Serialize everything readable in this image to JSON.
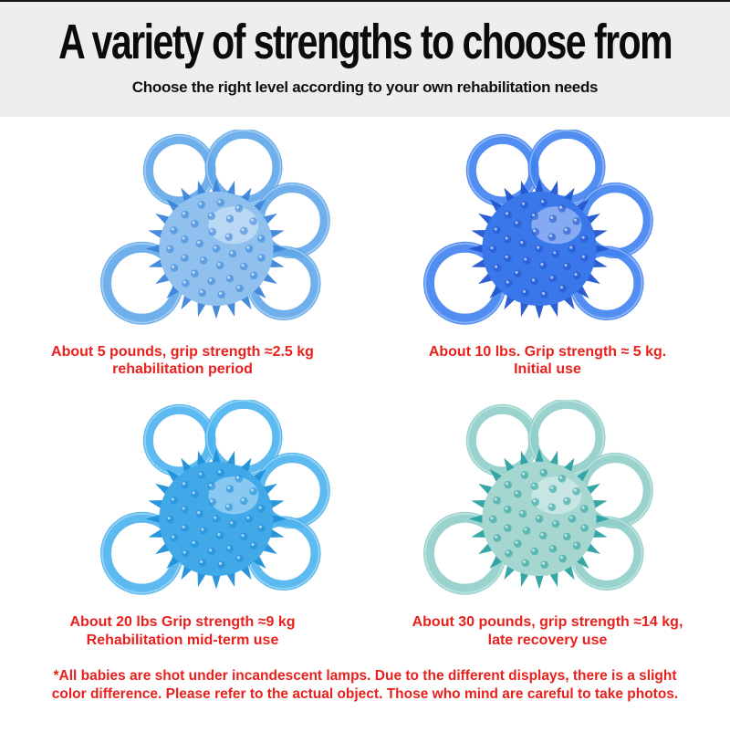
{
  "header": {
    "title": "A variety of strengths to choose from",
    "subtitle": "Choose the right level according to your own rehabilitation needs"
  },
  "products": [
    {
      "name": "grip-ball-5-pounds",
      "caption_line1": "About 5 pounds, grip strength ≈2.5 kg",
      "caption_line2": "rehabilitation period",
      "colors": {
        "ball": "#8fc0ee",
        "spike": "#3c85da",
        "ring": "#5fa7ea"
      }
    },
    {
      "name": "grip-ball-10-pounds",
      "caption_line1": "About 10 lbs. Grip strength ≈ 5 kg.",
      "caption_line2": "Initial use",
      "colors": {
        "ball": "#3a77ea",
        "spike": "#2356cf",
        "ring": "#3f82f0"
      }
    },
    {
      "name": "grip-ball-20-pounds",
      "caption_line1": "About 20 lbs Grip strength ≈9 kg",
      "caption_line2": "Rehabilitation mid-term use",
      "colors": {
        "ball": "#42a9e9",
        "spike": "#1e90d9",
        "ring": "#4ab3ee"
      }
    },
    {
      "name": "grip-ball-30-pounds",
      "caption_line1": "About 30 pounds, grip strength ≈14 kg,",
      "caption_line2": "late recovery use",
      "colors": {
        "ball": "#a5d6d0",
        "spike": "#2ba1a1",
        "ring": "#8fcec8"
      }
    }
  ],
  "footer": {
    "disclaimer": "*All babies are shot under incandescent lamps. Due to the different displays, there is a slight color difference. Please refer to the actual object. Those who mind are careful to take photos."
  },
  "theme": {
    "caption_color": "#e8211d",
    "title_color": "#0b0b0b",
    "band_color": "#eeeeee",
    "background": "#ffffff"
  }
}
